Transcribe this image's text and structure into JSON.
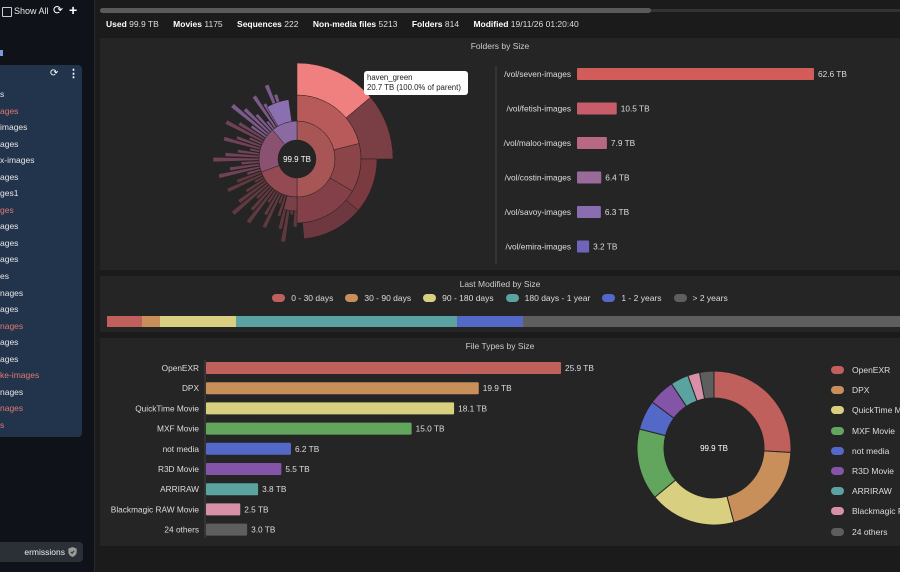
{
  "sidebar": {
    "show_all_label": "Show All",
    "refresh_icon": "refresh-icon",
    "add_icon": "plus-icon",
    "panel_refresh_icon": "refresh-icon",
    "panel_menu_icon": "kebab-menu-icon",
    "items": [
      {
        "label": "s",
        "color": "#e6e6e6"
      },
      {
        "label": "ages",
        "color": "#e07a70"
      },
      {
        "label": "images",
        "color": "#e6e6e6"
      },
      {
        "label": "ages",
        "color": "#e6e6e6"
      },
      {
        "label": "x-images",
        "color": "#e6e6e6"
      },
      {
        "label": "ages",
        "color": "#e6e6e6"
      },
      {
        "label": "ges1",
        "color": "#e6e6e6"
      },
      {
        "label": "ges",
        "color": "#e07a70"
      },
      {
        "label": "ages",
        "color": "#e6e6e6"
      },
      {
        "label": "ages",
        "color": "#e6e6e6"
      },
      {
        "label": "ages",
        "color": "#e6e6e6"
      },
      {
        "label": "es",
        "color": "#e6e6e6"
      },
      {
        "label": "nages",
        "color": "#e6e6e6"
      },
      {
        "label": "ages",
        "color": "#e6e6e6"
      },
      {
        "label": "nages",
        "color": "#e07a70"
      },
      {
        "label": "ages",
        "color": "#e6e6e6"
      },
      {
        "label": "ages",
        "color": "#e6e6e6"
      },
      {
        "label": "ke-images",
        "color": "#e07a70"
      },
      {
        "label": "nages",
        "color": "#e6e6e6"
      },
      {
        "label": "nages",
        "color": "#e07a70"
      },
      {
        "label": "s",
        "color": "#e07a70"
      }
    ],
    "permissions_label": "ermissions",
    "permissions_icon": "shield-icon"
  },
  "stats": {
    "used_key": "Used",
    "used_val": "99.9 TB",
    "movies_key": "Movies",
    "movies_val": "1175",
    "sequences_key": "Sequences",
    "sequences_val": "222",
    "nonmedia_key": "Non-media files",
    "nonmedia_val": "5213",
    "folders_key": "Folders",
    "folders_val": "814",
    "modified_key": "Modified",
    "modified_val": "19/11/26 01:20:40"
  },
  "folders_panel": {
    "title": "Folders by Size",
    "center_label": "99.9 TB",
    "tooltip_name": "haven_green",
    "tooltip_detail": "20.7 TB (100.0% of parent)"
  },
  "modified_panel": {
    "title": "Last Modified by Size"
  },
  "types_panel": {
    "title": "File Types by Size",
    "donut_center": "99.9 TB"
  },
  "chart_data": [
    {
      "type": "bar",
      "orientation": "horizontal",
      "title": "Folders by Size",
      "categories": [
        "/vol/seven-images",
        "/vol/fetish-images",
        "/vol/maloo-images",
        "/vol/costin-images",
        "/vol/savoy-images",
        "/vol/emira-images"
      ],
      "values": [
        62.6,
        10.5,
        7.9,
        6.4,
        6.3,
        3.2
      ],
      "value_labels": [
        "62.6 TB",
        "10.5 TB",
        "7.9 TB",
        "6.4 TB",
        "6.3 TB",
        "3.2 TB"
      ],
      "unit": "TB",
      "colors": [
        "#d25c59",
        "#c85c6a",
        "#b86880",
        "#9a6a9a",
        "#8a6cb0",
        "#6e64b8"
      ]
    },
    {
      "type": "bar",
      "orientation": "stacked-horizontal",
      "title": "Last Modified by Size",
      "categories": [
        "0 - 30 days",
        "30 - 90 days",
        "90 - 180 days",
        "180 days - 1 year",
        "1 - 2 years",
        "> 2 years"
      ],
      "values": [
        4.4,
        2.3,
        9.6,
        27.8,
        8.4,
        47.5
      ],
      "unit": "%",
      "colors": [
        "#c0605c",
        "#c98f5a",
        "#d8d080",
        "#5aa3a0",
        "#5468c8",
        "#5e5e5e"
      ],
      "legend_position": "top"
    },
    {
      "type": "bar",
      "orientation": "horizontal",
      "title": "File Types by Size",
      "categories": [
        "OpenEXR",
        "DPX",
        "QuickTime Movie",
        "MXF Movie",
        "not media",
        "R3D Movie",
        "ARRIRAW",
        "Blackmagic RAW Movie",
        "24 others"
      ],
      "values": [
        25.9,
        19.9,
        18.1,
        15.0,
        6.2,
        5.5,
        3.8,
        2.5,
        3.0
      ],
      "value_labels": [
        "25.9 TB",
        "19.9 TB",
        "18.1 TB",
        "15.0 TB",
        "6.2 TB",
        "5.5 TB",
        "3.8 TB",
        "2.5 TB",
        "3.0 TB"
      ],
      "unit": "TB",
      "colors": [
        "#c0605c",
        "#c98f5a",
        "#d8d080",
        "#62a65e",
        "#5468c8",
        "#8454a8",
        "#5aa3a0",
        "#d88fa8",
        "#5e5e5e"
      ]
    },
    {
      "type": "pie",
      "variant": "donut",
      "title": "File Types by Size",
      "categories": [
        "OpenEXR",
        "DPX",
        "QuickTime Movie",
        "MXF Movie",
        "not media",
        "R3D Movie",
        "ARRIRAW",
        "Blackmagic RAW Movie",
        "24 others"
      ],
      "values": [
        25.9,
        19.9,
        18.1,
        15.0,
        6.2,
        5.5,
        3.8,
        2.5,
        3.0
      ],
      "colors": [
        "#c0605c",
        "#c98f5a",
        "#d8d080",
        "#62a65e",
        "#5468c8",
        "#8454a8",
        "#5aa3a0",
        "#d88fa8",
        "#5e5e5e"
      ],
      "center_label": "99.9 TB",
      "legend_labels": [
        "OpenEXR",
        "DPX",
        "QuickTime M",
        "MXF Movie",
        "not media",
        "R3D Movie",
        "ARRIRAW",
        "Blackmagic R",
        "24 others"
      ],
      "legend_position": "right"
    }
  ]
}
